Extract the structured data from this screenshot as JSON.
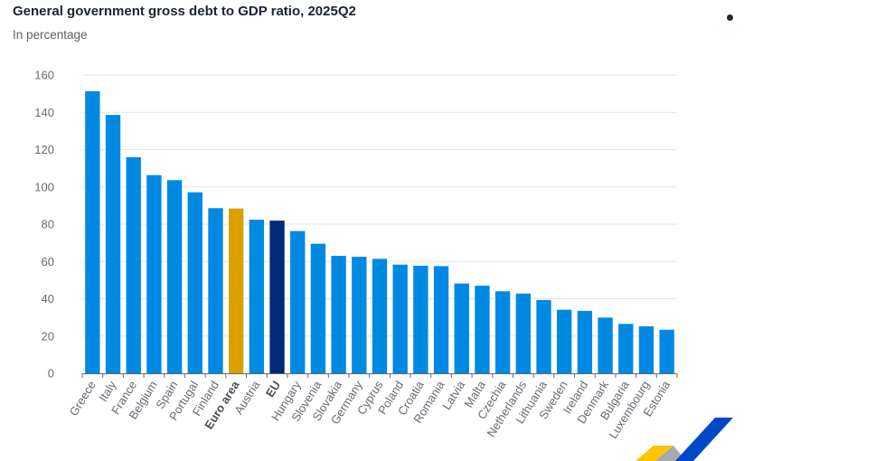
{
  "header": {
    "title": "General government gross debt to GDP ratio, 2025Q2",
    "subtitle": "In percentage"
  },
  "icons": {
    "menu_dot": "dot-icon",
    "logo": "ecb-logo-icon"
  },
  "colors": {
    "country": "#0089e3",
    "euro_area": "#d8a100",
    "eu": "#00297a",
    "grid": "#e1e7ef",
    "axis": "#666b73"
  },
  "chart_data": {
    "type": "bar",
    "title": "General government gross debt to GDP ratio, 2025Q2",
    "subtitle": "In percentage",
    "xlabel": "",
    "ylabel": "",
    "ylim": [
      0,
      160
    ],
    "yticks": [
      0,
      20,
      40,
      60,
      80,
      100,
      120,
      140,
      160
    ],
    "grid": true,
    "legend": "none",
    "categories": [
      "Greece",
      "Italy",
      "France",
      "Belgium",
      "Spain",
      "Portugal",
      "Finland",
      "Euro area",
      "Austria",
      "EU",
      "Hungary",
      "Slovenia",
      "Slovakia",
      "Germany",
      "Cyprus",
      "Poland",
      "Croatia",
      "Romania",
      "Latvia",
      "Malta",
      "Czechia",
      "Netherlands",
      "Lithuania",
      "Sweden",
      "Ireland",
      "Denmark",
      "Bulgaria",
      "Luxembourg",
      "Estonia"
    ],
    "values": [
      151.3,
      138.6,
      115.9,
      106.3,
      103.6,
      97.1,
      88.6,
      88.4,
      82.4,
      81.9,
      76.3,
      69.5,
      63.0,
      62.5,
      61.4,
      58.3,
      57.7,
      57.5,
      48.2,
      47.0,
      44.0,
      42.8,
      39.3,
      34.1,
      33.5,
      29.9,
      26.5,
      25.2,
      23.4
    ],
    "highlight": {
      "Euro area": "euro_area",
      "EU": "eu"
    },
    "bold_labels": [
      "Euro area",
      "EU"
    ]
  }
}
